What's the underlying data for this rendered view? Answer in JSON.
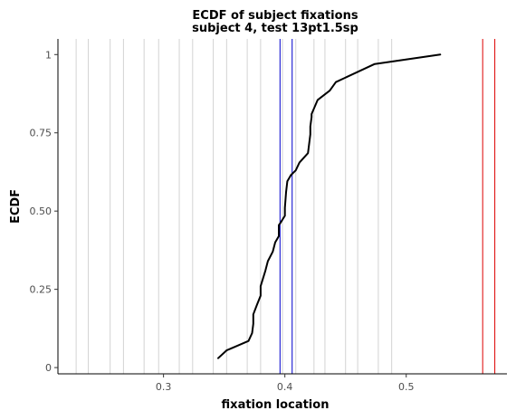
{
  "chart_data": {
    "type": "line",
    "title": "ECDF of subject fixations",
    "subtitle": "subject 4, test 13pt1.5sp",
    "xlabel": "fixation location",
    "ylabel": "ECDF",
    "xlim": [
      0.213,
      0.583
    ],
    "ylim": [
      -0.02,
      1.05
    ],
    "x_ticks": [
      0.3,
      0.4,
      0.5
    ],
    "x_tick_labels": [
      "0.3",
      "0.4",
      "0.5"
    ],
    "y_ticks": [
      0,
      0.25,
      0.5,
      0.75,
      1
    ],
    "y_tick_labels": [
      "0",
      "0.25",
      "0.50",
      "0.75",
      "1"
    ],
    "grid": false,
    "legend": "none",
    "reference_lines_gray": [
      0.228,
      0.238,
      0.256,
      0.267,
      0.284,
      0.296,
      0.313,
      0.324,
      0.341,
      0.352,
      0.369,
      0.38,
      0.398,
      0.409,
      0.424,
      0.433,
      0.45,
      0.46,
      0.477,
      0.488
    ],
    "reference_lines_blue": [
      0.396,
      0.406
    ],
    "reference_lines_red": [
      0.563,
      0.573
    ],
    "colors": {
      "ecdf": "#000000",
      "gray_lines": "#d3d3d3",
      "blue_lines": "#0000cc",
      "red_lines": "#dd0000",
      "axis": "#000000"
    },
    "series": [
      {
        "x": [
          0.345,
          0.352,
          0.37,
          0.373,
          0.374,
          0.374,
          0.377,
          0.38,
          0.38,
          0.384,
          0.386,
          0.39,
          0.392,
          0.395,
          0.395,
          0.396,
          0.4,
          0.4,
          0.401,
          0.402,
          0.405,
          0.409,
          0.412,
          0.419,
          0.421,
          0.421,
          0.422,
          0.422,
          0.427,
          0.437,
          0.442,
          0.474,
          0.528
        ],
        "y": [
          0.03,
          0.055,
          0.085,
          0.11,
          0.14,
          0.17,
          0.2,
          0.23,
          0.26,
          0.31,
          0.34,
          0.37,
          0.4,
          0.42,
          0.455,
          0.46,
          0.485,
          0.51,
          0.56,
          0.595,
          0.615,
          0.63,
          0.655,
          0.685,
          0.745,
          0.77,
          0.8,
          0.81,
          0.855,
          0.885,
          0.912,
          0.97,
          1.0
        ]
      }
    ]
  }
}
